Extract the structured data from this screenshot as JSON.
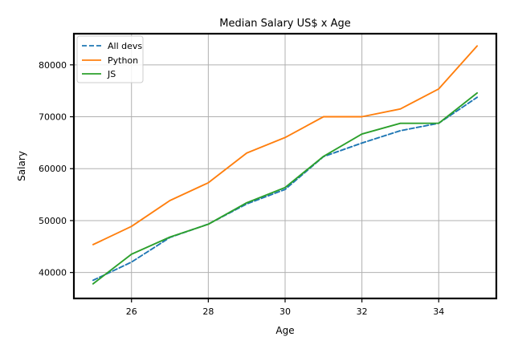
{
  "chart_data": {
    "type": "line",
    "title": "Median Salary US$ x Age",
    "xlabel": "Age",
    "ylabel": "Salary",
    "xlim": [
      24.5,
      35.5
    ],
    "ylim": [
      35000,
      86000
    ],
    "grid": true,
    "legend_position": "top-left",
    "x_ticks": [
      26,
      28,
      30,
      32,
      34
    ],
    "x_tick_labels": [
      "26",
      "28",
      "30",
      "32",
      "34"
    ],
    "y_ticks": [
      40000,
      50000,
      60000,
      70000,
      80000
    ],
    "y_tick_labels": [
      "40000",
      "50000",
      "60000",
      "70000",
      "80000"
    ],
    "x": [
      25,
      26,
      27,
      28,
      29,
      30,
      31,
      32,
      33,
      34,
      35
    ],
    "series": [
      {
        "name": "All devs",
        "color": "#1f77b4",
        "style": "dashed",
        "values": [
          38496,
          42000,
          46752,
          49320,
          53200,
          56000,
          62316,
          64928,
          67317,
          68748,
          73752
        ]
      },
      {
        "name": "Python",
        "color": "#ff7f0e",
        "style": "solid",
        "values": [
          45372,
          48876,
          53850,
          57287,
          63016,
          65998,
          70003,
          70000,
          71496,
          75370,
          83640
        ]
      },
      {
        "name": "JS",
        "color": "#2ca02c",
        "style": "solid",
        "values": [
          37810,
          43515,
          46823,
          49293,
          53437,
          56373,
          62375,
          66674,
          68745,
          68746,
          74583
        ]
      }
    ]
  }
}
